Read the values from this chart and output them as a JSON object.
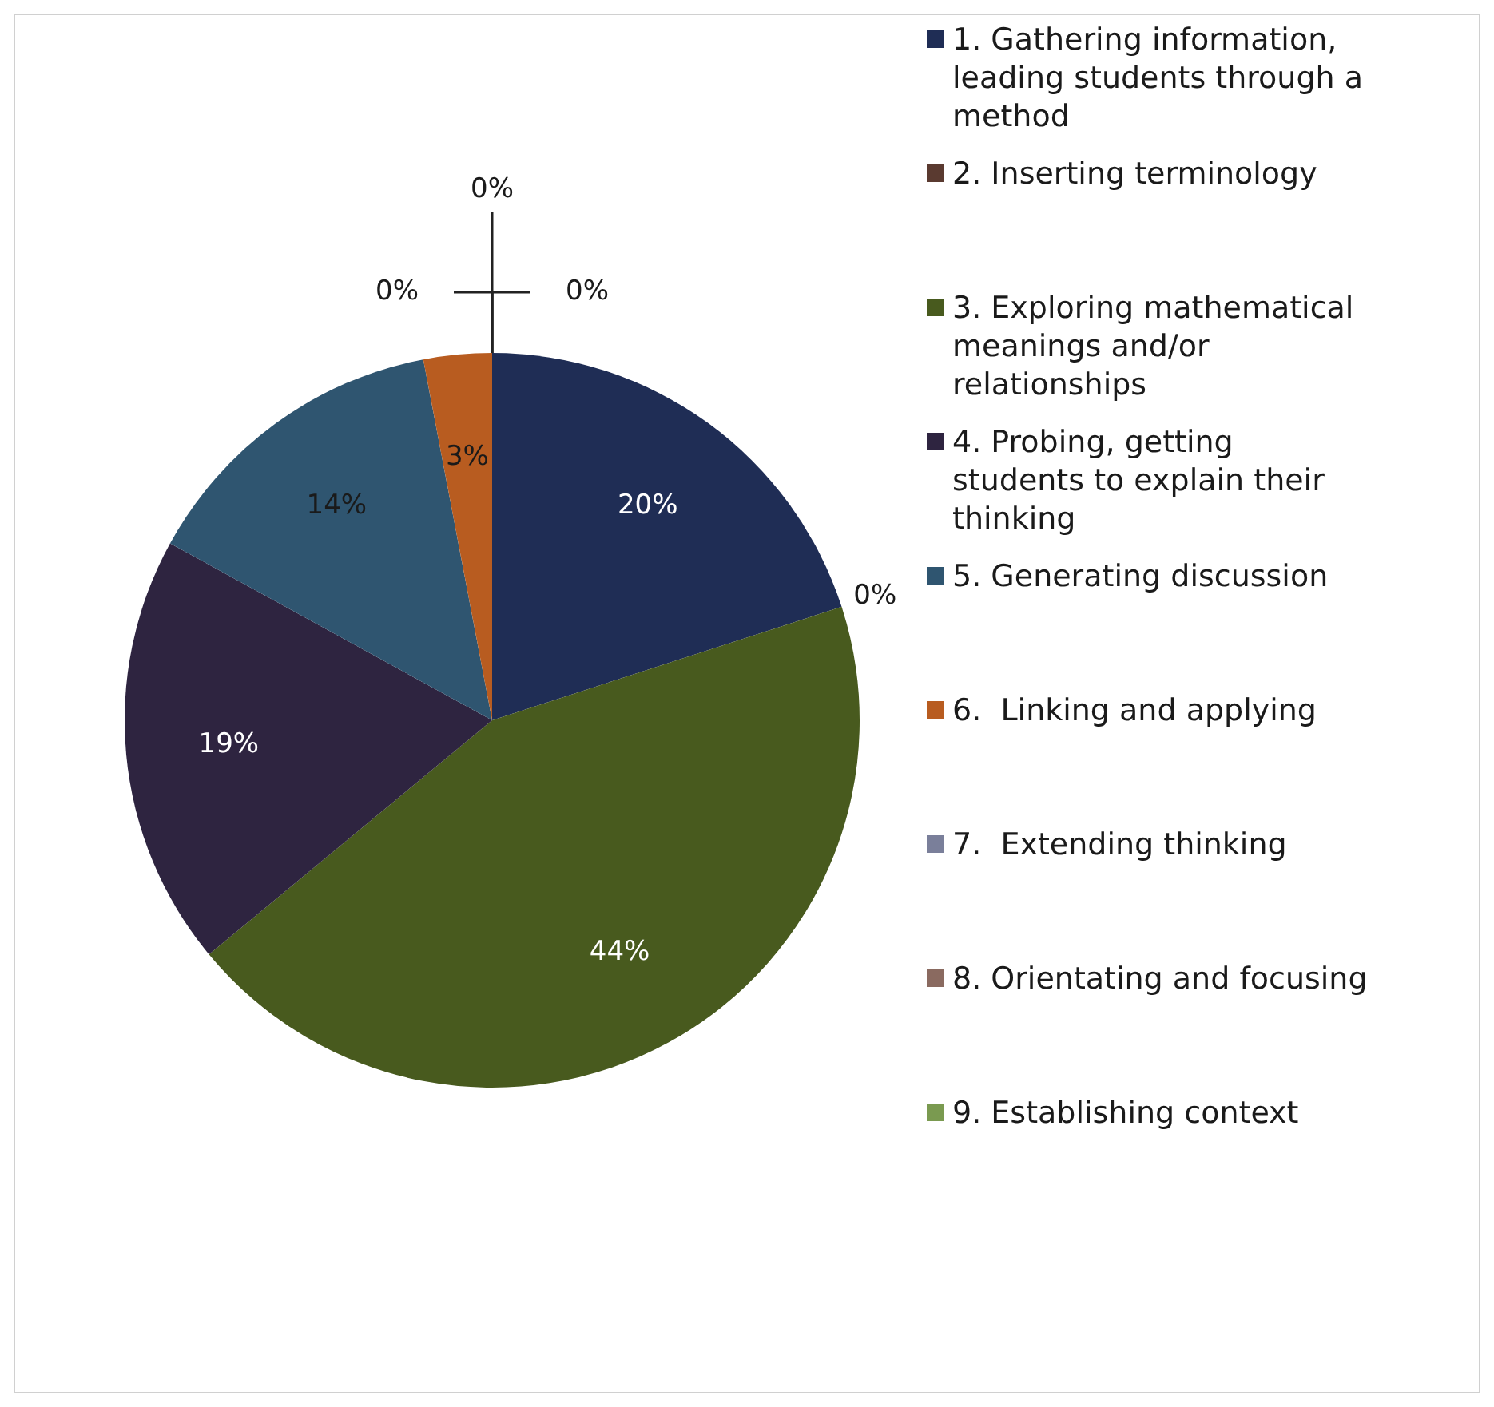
{
  "chart_data": {
    "type": "pie",
    "categories": [
      "1. Gathering information, leading students through a method",
      "2. Inserting terminology",
      "3. Exploring mathematical meanings and/or relationships",
      "4. Probing, getting students to explain their thinking",
      "5. Generating discussion",
      "6.  Linking and applying",
      "7.  Extending thinking",
      "8. Orientating and focusing",
      "9. Establishing context"
    ],
    "values": [
      20,
      0,
      44,
      19,
      14,
      3,
      0,
      0,
      0
    ],
    "value_labels": [
      "20%",
      "0%",
      "44%",
      "19%",
      "14%",
      "3%",
      "0%",
      "0%",
      "0%"
    ],
    "colors": [
      "#1f2d55",
      "#5a3a30",
      "#485a1e",
      "#2e2440",
      "#2f5570",
      "#b85c20",
      "#7a7f9a",
      "#8a6a60",
      "#7a9a50"
    ],
    "legend": "right"
  }
}
